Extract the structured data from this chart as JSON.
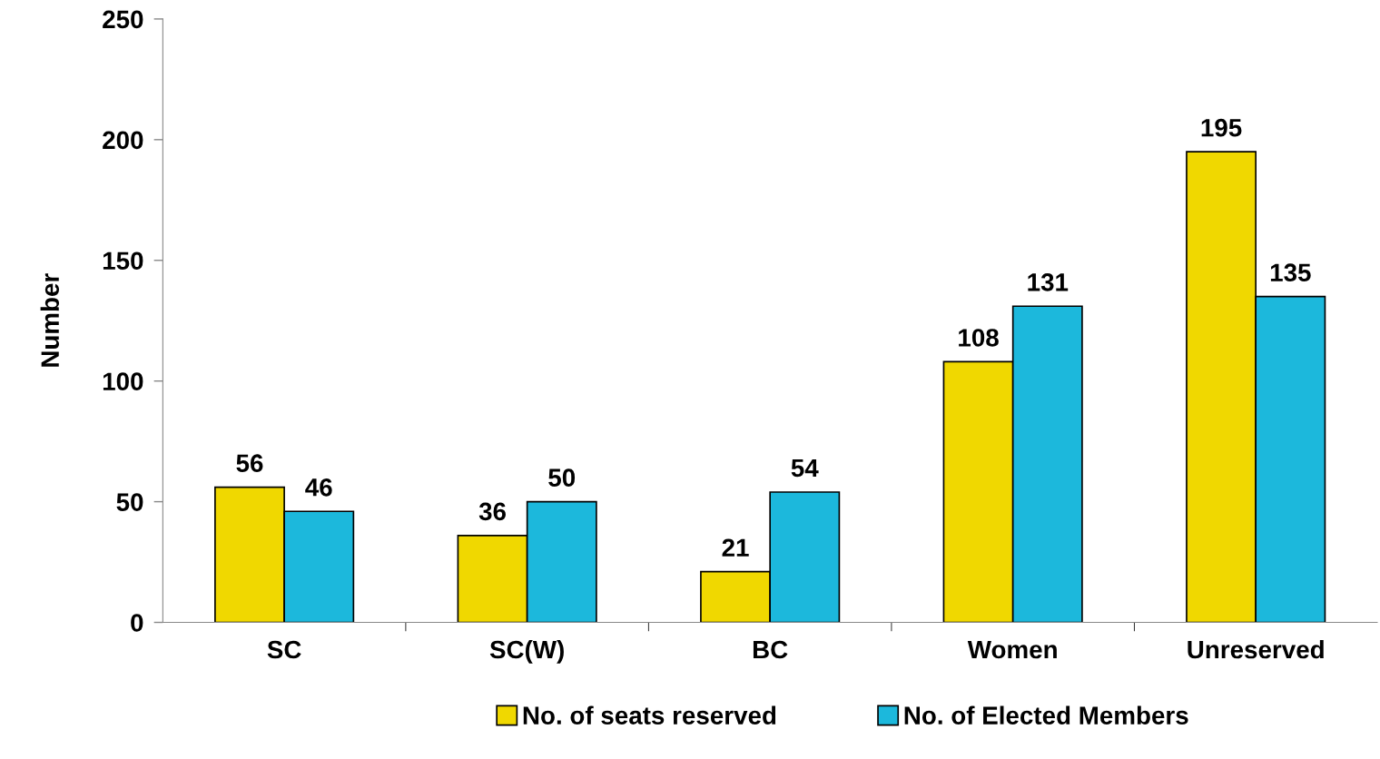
{
  "chart_data": {
    "type": "bar",
    "ylabel": "Number",
    "categories": [
      "SC",
      "SC(W)",
      "BC",
      "Women",
      "Unreserved"
    ],
    "series": [
      {
        "name": "No. of seats reserved",
        "color": "#f0d800",
        "values": [
          56,
          36,
          21,
          108,
          195
        ]
      },
      {
        "name": "No. of Elected Members",
        "color": "#1cb8dc",
        "values": [
          46,
          50,
          54,
          131,
          135
        ]
      }
    ],
    "ylim": [
      0,
      250
    ],
    "yticks": [
      0,
      50,
      100,
      150,
      200,
      250
    ],
    "data_labels": true,
    "grid": false,
    "legend": "bottom"
  }
}
